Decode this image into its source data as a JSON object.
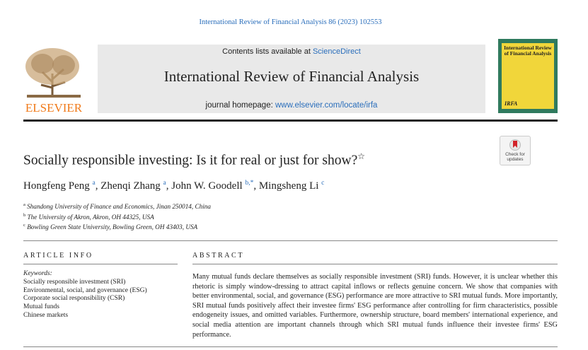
{
  "header": {
    "citation": "International Review of Financial Analysis 86 (2023) 102553",
    "contents_prefix": "Contents lists available at",
    "contents_link": "ScienceDirect",
    "journal_title": "International Review of Financial Analysis",
    "homepage_prefix": "journal homepage:",
    "homepage_link": "www.elsevier.com/locate/irfa",
    "publisher": "ELSEVIER",
    "cover_title": "International Review of Financial Analysis",
    "cover_abbrev": "IRFA",
    "check_updates": "Check for updates"
  },
  "article": {
    "title": "Socially responsible investing: Is it for real or just for show?",
    "title_mark": "☆",
    "separator": ",",
    "authors": [
      {
        "name": "Hongfeng Peng",
        "aff": "a"
      },
      {
        "name": "Zhenqi Zhang",
        "aff": "a"
      },
      {
        "name": "John W. Goodell",
        "aff": "b,*"
      },
      {
        "name": "Mingsheng Li",
        "aff": "c"
      }
    ],
    "affiliations": [
      {
        "label": "a",
        "text": "Shandong University of Finance and Economics, Jinan 250014, China"
      },
      {
        "label": "b",
        "text": "The University of Akron, Akron, OH 44325, USA"
      },
      {
        "label": "c",
        "text": "Bowling Green State University, Bowling Green, OH 43403, USA"
      }
    ]
  },
  "info": {
    "heading": "ARTICLE INFO",
    "keywords_label": "Keywords:",
    "keywords": [
      "Socially responsible investment (SRI)",
      "Environmental, social, and governance (ESG)",
      "Corporate social responsibility (CSR)",
      "Mutual funds",
      "Chinese markets"
    ]
  },
  "abstract": {
    "heading": "ABSTRACT",
    "text": "Many mutual funds declare themselves as socially responsible investment (SRI) funds. However, it is unclear whether this rhetoric is simply window-dressing to attract capital inflows or reflects genuine concern. We show that companies with better environmental, social, and governance (ESG) performance are more attractive to SRI mutual funds. More importantly, SRI mutual funds positively affect their investee firms' ESG performance after controlling for firm characteristics, possible endogeneity issues, and omitted variables. Furthermore, ownership structure, board members' international experience, and social media attention are important channels through which SRI mutual funds influence their investee firms' ESG performance."
  }
}
